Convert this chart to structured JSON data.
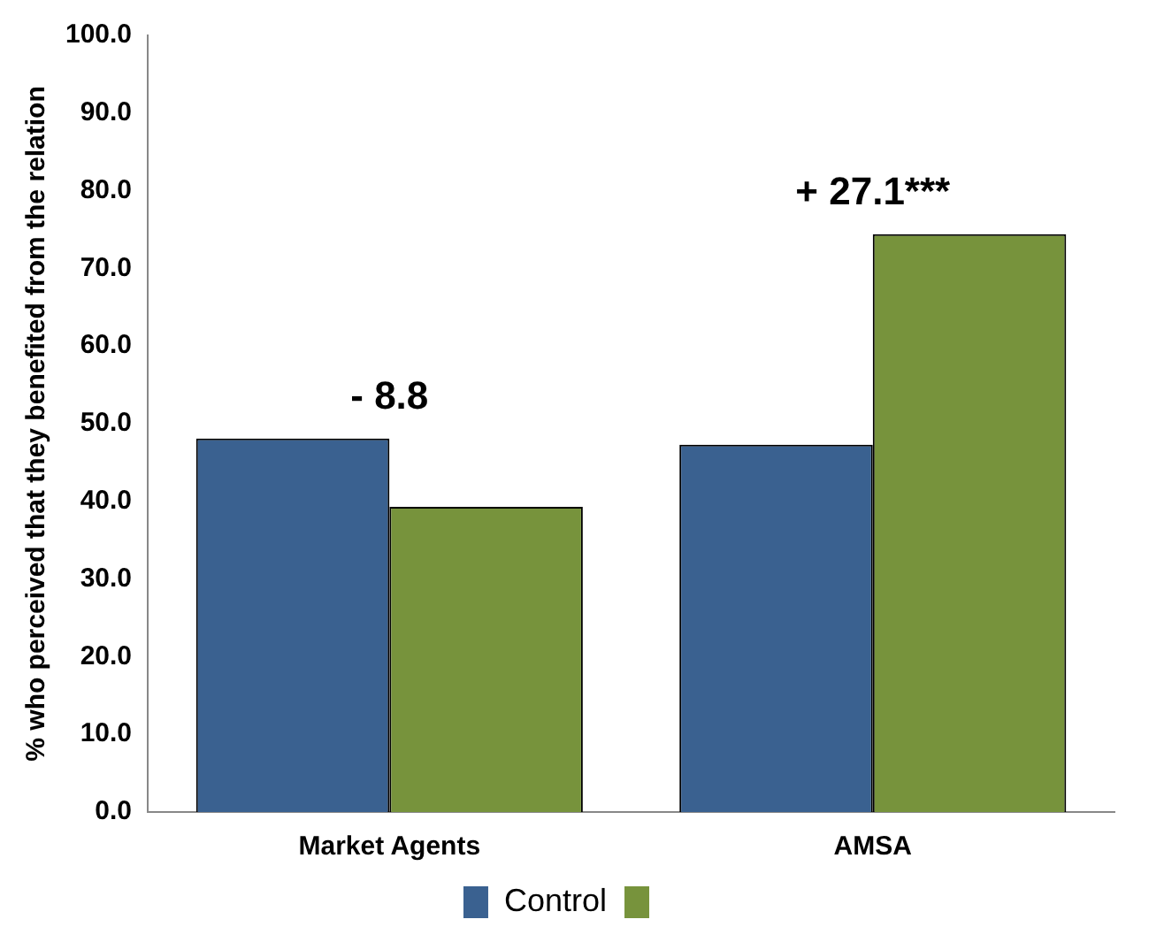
{
  "chart_data": {
    "type": "bar",
    "ylabel": "% who perceived that they benefited from the relation",
    "categories": [
      "Market Agents",
      "AMSA"
    ],
    "series": [
      {
        "name": "Control",
        "color": "#3a6190",
        "values": [
          48.1,
          47.3
        ]
      },
      {
        "color": "#77933c",
        "values": [
          39.3,
          74.4
        ]
      }
    ],
    "ylim": [
      0,
      100
    ],
    "yticks": [
      {
        "value": 0,
        "label": "0.0"
      },
      {
        "value": 10,
        "label": "10.0"
      },
      {
        "value": 20,
        "label": "20.0"
      },
      {
        "value": 30,
        "label": "30.0"
      },
      {
        "value": 40,
        "label": "40.0"
      },
      {
        "value": 50,
        "label": "50.0"
      },
      {
        "value": 60,
        "label": "60.0"
      },
      {
        "value": 70,
        "label": "70.0"
      },
      {
        "value": 80,
        "label": "80.0"
      },
      {
        "value": 90,
        "label": "90.0"
      },
      {
        "value": 100,
        "label": "100.0"
      }
    ],
    "annotations": [
      "- 8.8",
      "+ 27.1***"
    ],
    "grid": false,
    "legend": "bottom"
  }
}
